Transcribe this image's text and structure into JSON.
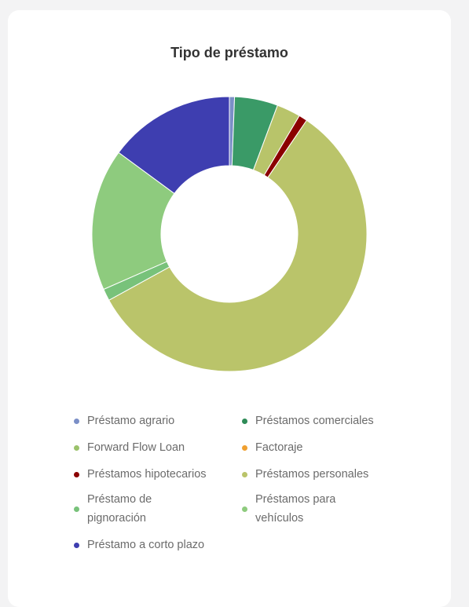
{
  "chart_data": {
    "type": "pie",
    "title": "Tipo de préstamo",
    "donut": true,
    "legend_position": "bottom",
    "slices": [
      {
        "label": "Préstamo agrario",
        "value": 0.6,
        "color": "#7b8fc7",
        "legend_color": "#7b8fc7"
      },
      {
        "label": "Préstamos comerciales",
        "value": 5.1,
        "color": "#3a9a67",
        "legend_color": "#2e8b57"
      },
      {
        "label": "Forward Flow Loan",
        "value": 2.8,
        "color": "#b8c46a",
        "legend_color": "#9bc26b"
      },
      {
        "label": "Factoraje",
        "value": 0.0,
        "color": "#f0a030",
        "legend_color": "#f0a030"
      },
      {
        "label": "Préstamos hipotecarios",
        "value": 1.0,
        "color": "#8b0000",
        "legend_color": "#8b0000"
      },
      {
        "label": "Préstamos personales",
        "value": 57.5,
        "color": "#bac46a",
        "legend_color": "#bac46a"
      },
      {
        "label": "Préstamo de\npignoración",
        "value": 1.4,
        "color": "#78c27a",
        "legend_color": "#78c27a"
      },
      {
        "label": "Préstamos para\nvehículos",
        "value": 16.7,
        "color": "#8ecb7e",
        "legend_color": "#8ecb7e"
      },
      {
        "label": "Préstamo a corto plazo",
        "value": 14.9,
        "color": "#3e3eb0",
        "legend_color": "#3e3eb0"
      }
    ]
  }
}
